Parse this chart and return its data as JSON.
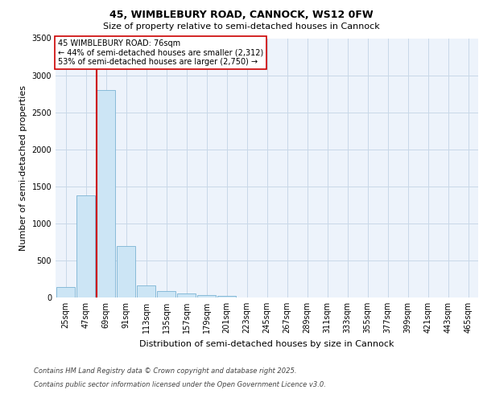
{
  "title_line1": "45, WIMBLEBURY ROAD, CANNOCK, WS12 0FW",
  "title_line2": "Size of property relative to semi-detached houses in Cannock",
  "categories": [
    "25sqm",
    "47sqm",
    "69sqm",
    "91sqm",
    "113sqm",
    "135sqm",
    "157sqm",
    "179sqm",
    "201sqm",
    "223sqm",
    "245sqm",
    "267sqm",
    "289sqm",
    "311sqm",
    "333sqm",
    "355sqm",
    "377sqm",
    "399sqm",
    "421sqm",
    "443sqm",
    "465sqm"
  ],
  "values": [
    140,
    1380,
    2800,
    700,
    160,
    90,
    55,
    35,
    20,
    0,
    0,
    0,
    0,
    0,
    0,
    0,
    0,
    0,
    0,
    0,
    0
  ],
  "bar_color": "#cce5f5",
  "bar_edge_color": "#7ab4d4",
  "vline_x_index": 2,
  "vline_color": "#cc0000",
  "ylabel": "Number of semi-detached properties",
  "xlabel": "Distribution of semi-detached houses by size in Cannock",
  "ylim": [
    0,
    3500
  ],
  "yticks": [
    0,
    500,
    1000,
    1500,
    2000,
    2500,
    3000,
    3500
  ],
  "annotation_title": "45 WIMBLEBURY ROAD: 76sqm",
  "annotation_line1": "← 44% of semi-detached houses are smaller (2,312)",
  "annotation_line2": "53% of semi-detached houses are larger (2,750) →",
  "annotation_box_facecolor": "#ffffff",
  "annotation_box_edgecolor": "#cc0000",
  "footer_line1": "Contains HM Land Registry data © Crown copyright and database right 2025.",
  "footer_line2": "Contains public sector information licensed under the Open Government Licence v3.0.",
  "plot_facecolor": "#edf3fb",
  "grid_color": "#c8d8e8",
  "title1_fontsize": 9,
  "title2_fontsize": 8,
  "ylabel_fontsize": 8,
  "xlabel_fontsize": 8,
  "tick_fontsize": 7,
  "annotation_fontsize": 7,
  "footer_fontsize": 6
}
